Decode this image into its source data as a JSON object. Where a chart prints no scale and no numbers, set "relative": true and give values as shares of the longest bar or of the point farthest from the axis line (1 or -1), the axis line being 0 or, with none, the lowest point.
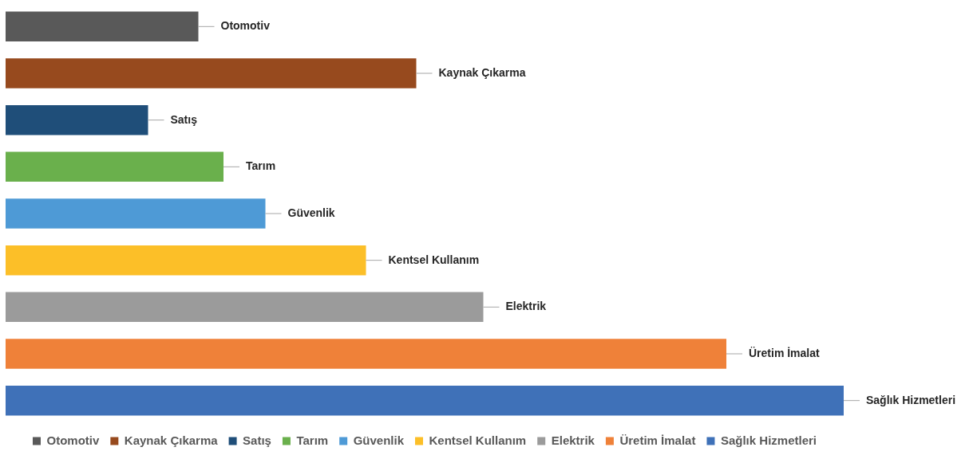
{
  "chart_data": {
    "type": "bar",
    "orientation": "horizontal",
    "relative": true,
    "stacked": true,
    "legend": "bottom",
    "categories": [
      null,
      null,
      null,
      null,
      null,
      null,
      null,
      null,
      null
    ],
    "series": [
      {
        "name": "Otomotiv",
        "color": "#595959",
        "values": [
          0.23,
          null,
          null,
          null,
          null,
          null,
          null,
          null,
          null
        ]
      },
      {
        "name": "Kaynak Çıkarma",
        "color": "#974a1e",
        "values": [
          null,
          0.49,
          null,
          null,
          null,
          null,
          null,
          null,
          null
        ]
      },
      {
        "name": "Satış",
        "color": "#1f4e79",
        "values": [
          null,
          null,
          0.17,
          null,
          null,
          null,
          null,
          null,
          null
        ]
      },
      {
        "name": "Tarım",
        "color": "#6ab04c",
        "values": [
          null,
          null,
          null,
          0.26,
          null,
          null,
          null,
          null,
          null
        ]
      },
      {
        "name": "Güvenlik",
        "color": "#4e9ad6",
        "values": [
          null,
          null,
          null,
          null,
          0.31,
          null,
          null,
          null,
          null
        ]
      },
      {
        "name": "Kentsel Kullanım",
        "color": "#fcbf28",
        "values": [
          null,
          null,
          null,
          null,
          null,
          0.43,
          null,
          null,
          null
        ]
      },
      {
        "name": "Elektrik",
        "color": "#9b9b9b",
        "values": [
          null,
          null,
          null,
          null,
          null,
          null,
          0.57,
          null,
          null
        ]
      },
      {
        "name": "Üretim İmalat",
        "color": "#ef8139",
        "values": [
          null,
          null,
          null,
          null,
          null,
          null,
          null,
          0.86,
          null
        ]
      },
      {
        "name": "Sağlık Hizmetleri",
        "color": "#3f71b8",
        "values": [
          null,
          null,
          null,
          null,
          null,
          null,
          null,
          null,
          1
        ]
      }
    ]
  }
}
